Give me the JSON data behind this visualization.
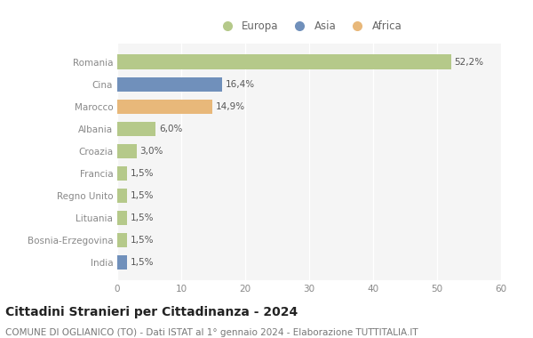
{
  "categories": [
    "Romania",
    "Cina",
    "Marocco",
    "Albania",
    "Croazia",
    "Francia",
    "Regno Unito",
    "Lituania",
    "Bosnia-Erzegovina",
    "India"
  ],
  "values": [
    52.2,
    16.4,
    14.9,
    6.0,
    3.0,
    1.5,
    1.5,
    1.5,
    1.5,
    1.5
  ],
  "labels": [
    "52,2%",
    "16,4%",
    "14,9%",
    "6,0%",
    "3,0%",
    "1,5%",
    "1,5%",
    "1,5%",
    "1,5%",
    "1,5%"
  ],
  "colors": [
    "#b5c98a",
    "#7090bb",
    "#e8b87a",
    "#b5c98a",
    "#b5c98a",
    "#b5c98a",
    "#b5c98a",
    "#b5c98a",
    "#b5c98a",
    "#7090bb"
  ],
  "legend_labels": [
    "Europa",
    "Asia",
    "Africa"
  ],
  "legend_colors": [
    "#b5c98a",
    "#7090bb",
    "#e8b87a"
  ],
  "title": "Cittadini Stranieri per Cittadinanza - 2024",
  "subtitle": "COMUNE DI OGLIANICO (TO) - Dati ISTAT al 1° gennaio 2024 - Elaborazione TUTTITALIA.IT",
  "xlim": [
    0,
    60
  ],
  "xticks": [
    0,
    10,
    20,
    30,
    40,
    50,
    60
  ],
  "background_color": "#ffffff",
  "plot_bg_color": "#f5f5f5",
  "grid_color": "#ffffff",
  "bar_height": 0.65,
  "title_fontsize": 10,
  "subtitle_fontsize": 7.5,
  "label_fontsize": 7.5,
  "tick_fontsize": 7.5,
  "legend_fontsize": 8.5
}
